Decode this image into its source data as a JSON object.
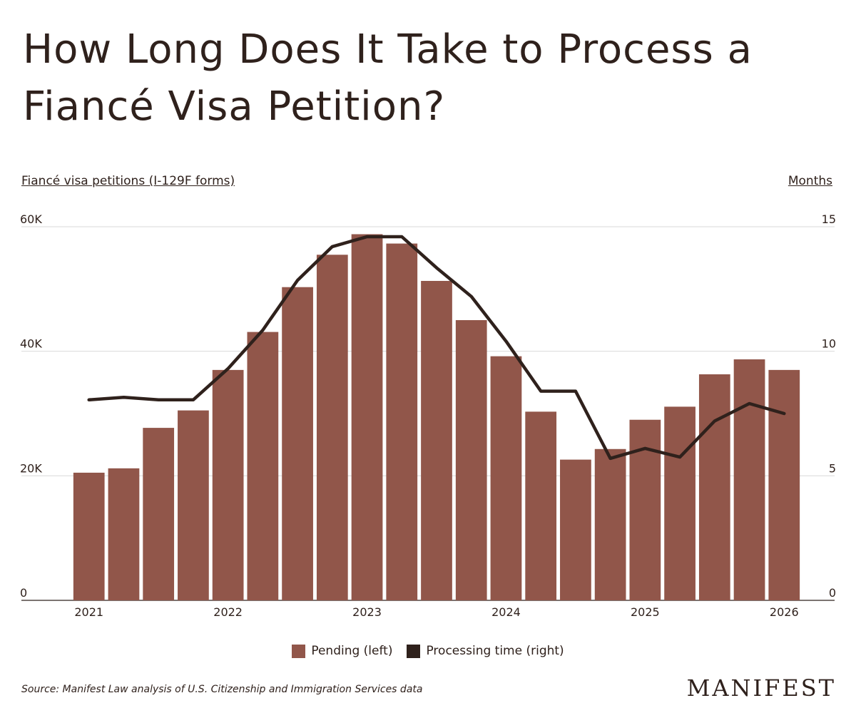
{
  "title": "How Long Does It Take to Process a Fiancé Visa Petition?",
  "colors": {
    "bar": "#91564a",
    "line": "#2f211c",
    "grid": "#d9d9d9",
    "text": "#2f211c"
  },
  "chart_data": {
    "type": "bar",
    "left_axis_label": "Fiancé visa petitions (I-129F forms)",
    "right_axis_label": "Months",
    "y_left": {
      "min": 0,
      "max": 60000,
      "ticks": [
        0,
        20000,
        40000,
        60000
      ],
      "tick_labels": [
        "0",
        "20K",
        "40K",
        "60K"
      ]
    },
    "y_right": {
      "min": 0,
      "max": 15,
      "ticks": [
        0,
        5,
        10,
        15
      ],
      "tick_labels": [
        "0",
        "5",
        "10",
        "15"
      ]
    },
    "x_ticks": [
      {
        "label": "2021",
        "at": 2021.0
      },
      {
        "label": "2022",
        "at": 2022.0
      },
      {
        "label": "2023",
        "at": 2023.0
      },
      {
        "label": "2024",
        "at": 2024.0
      },
      {
        "label": "2025",
        "at": 2025.0
      },
      {
        "label": "2026",
        "at": 2026.0
      }
    ],
    "x_range": [
      2020.75,
      2026.25
    ],
    "periods": [
      2021.0,
      2021.25,
      2021.5,
      2021.75,
      2022.0,
      2022.25,
      2022.5,
      2022.75,
      2023.0,
      2023.25,
      2023.5,
      2023.75,
      2024.0,
      2024.25,
      2024.5,
      2024.75,
      2025.0,
      2025.25,
      2025.5,
      2025.75,
      2026.0
    ],
    "series": [
      {
        "name": "Pending (left)",
        "kind": "bar",
        "axis": "left",
        "values": [
          20500,
          21200,
          27700,
          30500,
          37000,
          43100,
          50300,
          55500,
          58800,
          57300,
          51300,
          45000,
          39200,
          30300,
          22600,
          24300,
          29000,
          31100,
          36300,
          38700,
          37000
        ]
      },
      {
        "name": "Processing time (right)",
        "kind": "line",
        "axis": "right",
        "values": [
          8.05,
          8.15,
          8.05,
          8.05,
          9.3,
          10.85,
          12.85,
          14.2,
          14.6,
          14.6,
          13.35,
          12.2,
          10.4,
          8.4,
          8.4,
          5.7,
          6.1,
          5.75,
          7.2,
          7.9,
          7.5
        ]
      }
    ],
    "legend_position": "bottom-center",
    "grid": true
  },
  "legend": {
    "pending": "Pending (left)",
    "processing": "Processing time (right)"
  },
  "source": "Source: Manifest Law analysis of U.S. Citizenship and Immigration Services data",
  "brand": "MANIFEST"
}
